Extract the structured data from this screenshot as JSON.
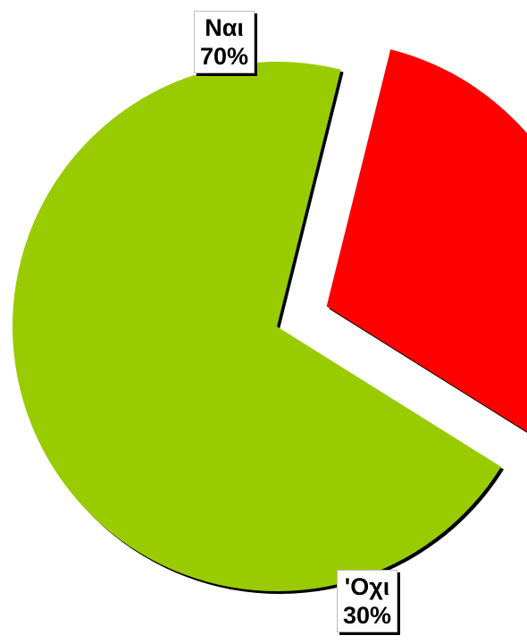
{
  "chart_data": {
    "type": "pie",
    "categories": [
      "Ναι",
      "'Οχι"
    ],
    "values": [
      70,
      30
    ],
    "labels": [
      {
        "name": "Ναι",
        "percent": "70%"
      },
      {
        "name": "'Οχι",
        "percent": "30%"
      }
    ],
    "colors": [
      "#99cc00",
      "#ff0000"
    ],
    "exploded_slice": "'Οχι",
    "legend": "none"
  }
}
